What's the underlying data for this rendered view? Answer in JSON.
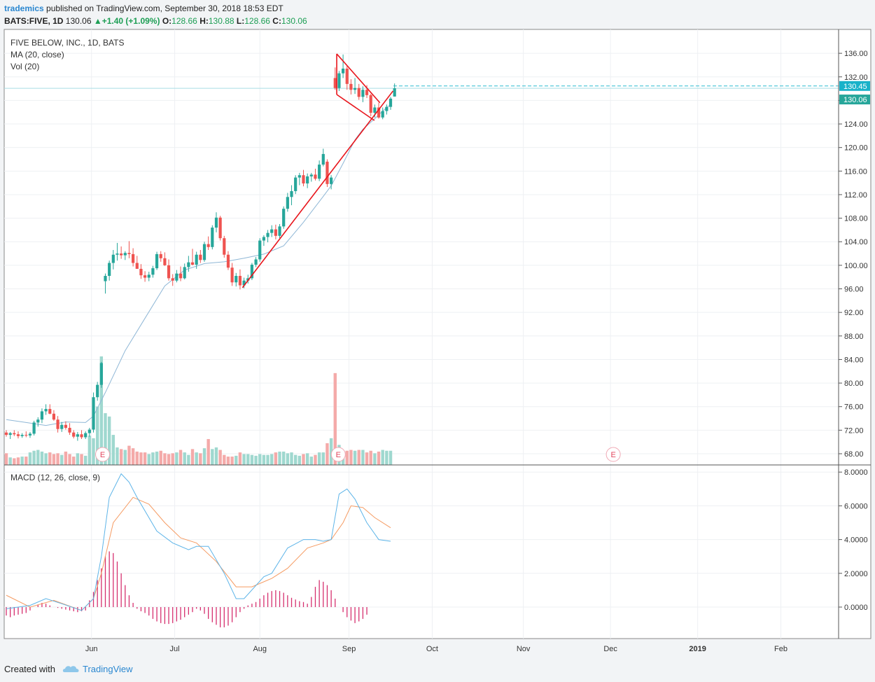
{
  "header": {
    "author": "trademics",
    "published_text": "published on TradingView.com, September 30, 2018 18:53 EDT",
    "symbol": "BATS:FIVE, 1D",
    "last": "130.06",
    "change": "+1.40 (+1.09%)",
    "o_label": "O:",
    "o_value": "128.66",
    "h_label": "H:",
    "h_value": "130.88",
    "l_label": "L:",
    "l_value": "128.66",
    "c_label": "C:",
    "c_value": "130.06"
  },
  "legend": {
    "name": "FIVE BELOW, INC., 1D, BATS",
    "ma": "MA (20, close)",
    "vol": "Vol (20)",
    "macd": "MACD (12, 26, close, 9)"
  },
  "footer": {
    "created": "Created with",
    "brand": "TradingView"
  },
  "colors": {
    "up": "#26a69a",
    "down": "#ef5350",
    "ma": "#8fb7d6",
    "macd": "#5db4e8",
    "signal": "#f59b62",
    "hist": "#d6306f",
    "trend": "#e8141b",
    "last_line": "#2dbcd1",
    "earnings": "#e2445c"
  },
  "chart_data": [
    {
      "type": "candlestick",
      "title": "FIVE BELOW, INC., 1D, BATS",
      "ylim": [
        66,
        138
      ],
      "y_ticks": [
        "136.00",
        "132.00",
        "128.00",
        "124.00",
        "120.00",
        "116.00",
        "112.00",
        "108.00",
        "104.00",
        "100.00",
        "96.00",
        "92.00",
        "88.00",
        "84.00",
        "80.00",
        "76.00",
        "72.00",
        "68.00"
      ],
      "x_ticks": [
        "Jun",
        "Jul",
        "Aug",
        "Sep",
        "Oct",
        "Nov",
        "Dec",
        "2019",
        "Feb"
      ],
      "x_tick_bars": [
        21.5,
        42.5,
        64,
        86.5,
        107.5,
        130.5,
        152.5,
        174.5,
        195.5
      ],
      "last_price": 130.06,
      "last_price_label": "130.06",
      "dashed_level": 130.45,
      "dashed_label": "130.45",
      "ohlc": [
        [
          71.6,
          72.0,
          70.9,
          71.2
        ],
        [
          71.2,
          71.7,
          70.5,
          71.5
        ],
        [
          71.5,
          72.0,
          71.0,
          71.3
        ],
        [
          71.3,
          71.8,
          70.6,
          71.0
        ],
        [
          71.0,
          71.5,
          70.7,
          71.2
        ],
        [
          71.2,
          71.8,
          70.8,
          71.1
        ],
        [
          71.1,
          71.7,
          70.7,
          71.4
        ],
        [
          71.4,
          73.6,
          71.1,
          73.3
        ],
        [
          73.3,
          74.2,
          72.6,
          73.8
        ],
        [
          73.8,
          75.7,
          73.2,
          75.2
        ],
        [
          75.2,
          76.4,
          74.6,
          75.6
        ],
        [
          75.6,
          76.4,
          74.7,
          74.8
        ],
        [
          74.8,
          75.4,
          73.6,
          73.8
        ],
        [
          73.8,
          74.4,
          71.6,
          72.2
        ],
        [
          72.2,
          73.4,
          71.7,
          72.9
        ],
        [
          72.9,
          73.5,
          72.1,
          72.4
        ],
        [
          72.4,
          73.2,
          71.2,
          71.6
        ],
        [
          71.6,
          72.0,
          70.6,
          70.9
        ],
        [
          70.9,
          71.7,
          70.2,
          71.3
        ],
        [
          71.3,
          72.0,
          70.5,
          70.8
        ],
        [
          70.8,
          71.8,
          70.5,
          71.5
        ],
        [
          71.5,
          72.4,
          70.9,
          72.1
        ],
        [
          72.1,
          78.4,
          71.6,
          77.6
        ],
        [
          77.6,
          80.2,
          77.0,
          79.7
        ],
        [
          79.7,
          83.6,
          79.2,
          83.4
        ],
        [
          97.3,
          98.6,
          95.2,
          98.2
        ],
        [
          98.2,
          100.8,
          97.4,
          100.4
        ],
        [
          100.4,
          102.6,
          99.3,
          101.8
        ],
        [
          101.8,
          103.8,
          100.8,
          102.0
        ],
        [
          102.0,
          103.2,
          101.1,
          101.7
        ],
        [
          101.7,
          102.4,
          100.9,
          102.1
        ],
        [
          102.1,
          104.1,
          101.2,
          101.9
        ],
        [
          101.9,
          102.9,
          99.8,
          100.4
        ],
        [
          100.4,
          101.6,
          99.4,
          99.4
        ],
        [
          99.4,
          100.2,
          97.7,
          98.3
        ],
        [
          98.3,
          99.0,
          97.2,
          97.9
        ],
        [
          97.9,
          98.9,
          97.3,
          98.4
        ],
        [
          98.4,
          99.9,
          97.9,
          99.5
        ],
        [
          99.5,
          102.3,
          99.2,
          101.9
        ],
        [
          101.9,
          102.4,
          100.6,
          101.2
        ],
        [
          101.2,
          102.2,
          99.9,
          100.0
        ],
        [
          100.0,
          101.0,
          97.4,
          97.8
        ],
        [
          97.8,
          98.5,
          96.5,
          97.4
        ],
        [
          97.4,
          99.2,
          97.1,
          98.6
        ],
        [
          98.6,
          99.8,
          97.3,
          97.8
        ],
        [
          97.8,
          100.3,
          97.6,
          99.7
        ],
        [
          99.7,
          101.6,
          98.9,
          100.5
        ],
        [
          100.5,
          102.8,
          100.0,
          100.1
        ],
        [
          100.1,
          102.3,
          99.4,
          101.8
        ],
        [
          101.8,
          102.6,
          100.4,
          100.9
        ],
        [
          100.9,
          104.0,
          100.6,
          103.6
        ],
        [
          103.6,
          104.9,
          102.6,
          103.1
        ],
        [
          103.1,
          106.8,
          102.7,
          106.4
        ],
        [
          106.4,
          109.0,
          105.6,
          108.1
        ],
        [
          108.1,
          108.4,
          104.2,
          104.6
        ],
        [
          104.6,
          105.0,
          101.3,
          101.8
        ],
        [
          101.8,
          102.4,
          99.2,
          99.6
        ],
        [
          99.6,
          100.4,
          96.5,
          97.1
        ],
        [
          97.1,
          98.7,
          96.4,
          98.2
        ],
        [
          98.2,
          99.3,
          95.9,
          96.6
        ],
        [
          96.6,
          97.9,
          96.1,
          97.4
        ],
        [
          97.4,
          98.4,
          96.9,
          97.8
        ],
        [
          97.8,
          100.4,
          97.5,
          100.1
        ],
        [
          100.1,
          101.4,
          99.7,
          101.0
        ],
        [
          101.0,
          104.6,
          100.6,
          104.2
        ],
        [
          104.2,
          105.1,
          103.3,
          104.8
        ],
        [
          104.8,
          106.0,
          103.9,
          105.5
        ],
        [
          105.5,
          106.8,
          104.8,
          106.1
        ],
        [
          106.1,
          106.9,
          104.4,
          105.0
        ],
        [
          105.0,
          107.0,
          104.6,
          106.6
        ],
        [
          106.6,
          110.0,
          106.2,
          109.6
        ],
        [
          109.6,
          112.3,
          109.1,
          111.6
        ],
        [
          111.6,
          113.6,
          110.2,
          112.6
        ],
        [
          112.6,
          115.3,
          112.1,
          114.9
        ],
        [
          114.9,
          115.7,
          113.6,
          115.3
        ],
        [
          115.3,
          116.2,
          113.4,
          113.9
        ],
        [
          113.9,
          115.6,
          113.1,
          115.1
        ],
        [
          115.1,
          115.7,
          114.2,
          115.4
        ],
        [
          115.4,
          116.4,
          114.4,
          114.7
        ],
        [
          114.7,
          117.8,
          114.3,
          117.1
        ],
        [
          117.1,
          119.8,
          116.8,
          118.9
        ],
        [
          117.6,
          118.0,
          113.3,
          113.8
        ],
        [
          113.8,
          115.3,
          112.9,
          114.9
        ],
        [
          131.8,
          133.6,
          129.8,
          130.1
        ],
        [
          130.1,
          133.0,
          129.6,
          132.6
        ],
        [
          132.6,
          135.8,
          131.8,
          133.4
        ],
        [
          133.4,
          133.8,
          129.8,
          130.8
        ],
        [
          130.8,
          131.6,
          129.0,
          129.8
        ],
        [
          129.8,
          131.8,
          129.1,
          130.1
        ],
        [
          130.1,
          130.8,
          128.1,
          128.6
        ],
        [
          128.6,
          130.4,
          127.7,
          129.8
        ],
        [
          129.8,
          130.6,
          128.4,
          128.9
        ],
        [
          128.9,
          129.1,
          125.3,
          125.9
        ],
        [
          125.9,
          127.3,
          125.1,
          126.8
        ],
        [
          126.8,
          127.6,
          124.9,
          125.1
        ],
        [
          125.1,
          126.8,
          124.8,
          126.2
        ],
        [
          126.2,
          127.3,
          125.6,
          126.9
        ],
        [
          126.9,
          128.6,
          126.4,
          128.3
        ],
        [
          128.66,
          130.88,
          128.66,
          130.06
        ]
      ],
      "volume": [
        1.4,
        0.9,
        0.8,
        0.9,
        1.0,
        1.0,
        1.5,
        1.7,
        1.8,
        1.6,
        1.4,
        1.5,
        1.3,
        1.4,
        1.2,
        1.6,
        1.3,
        1.0,
        1.4,
        1.3,
        1.1,
        3.5,
        3.2,
        7.0,
        13.0,
        6.2,
        5.8,
        3.6,
        2.1,
        1.9,
        1.8,
        2.3,
        2.0,
        1.6,
        1.5,
        1.5,
        1.3,
        1.5,
        1.6,
        1.7,
        1.4,
        1.3,
        1.4,
        1.5,
        1.8,
        1.5,
        1.2,
        1.9,
        1.5,
        1.4,
        2.0,
        3.1,
        1.9,
        2.1,
        1.8,
        1.2,
        1.0,
        1.0,
        1.1,
        1.5,
        1.3,
        1.3,
        1.2,
        1.1,
        1.3,
        1.2,
        1.2,
        1.3,
        1.5,
        1.6,
        1.6,
        1.4,
        1.5,
        1.2,
        1.1,
        1.3,
        1.4,
        1.0,
        1.2,
        1.5,
        1.5,
        2.6,
        3.2,
        11.0,
        2.4,
        1.6,
        1.7,
        1.8,
        1.7,
        1.8,
        1.8,
        1.5,
        1.7,
        1.4,
        1.6,
        1.8,
        1.7,
        1.7
      ],
      "volume_max": 13.0,
      "ma": [
        [
          0,
          73.8
        ],
        [
          5,
          73.3
        ],
        [
          10,
          72.8
        ],
        [
          15,
          73.4
        ],
        [
          20,
          73.3
        ],
        [
          22,
          74.4
        ],
        [
          25,
          78.4
        ],
        [
          30,
          85.5
        ],
        [
          35,
          91.0
        ],
        [
          40,
          96.5
        ],
        [
          45,
          99.2
        ],
        [
          50,
          100.3
        ],
        [
          55,
          100.6
        ],
        [
          60,
          101.2
        ],
        [
          65,
          101.9
        ],
        [
          70,
          103.3
        ],
        [
          75,
          107.3
        ],
        [
          80,
          111.7
        ],
        [
          82,
          113.5
        ],
        [
          85,
          117.3
        ],
        [
          88,
          121.3
        ],
        [
          90,
          123.1
        ],
        [
          93,
          124.9
        ],
        [
          95,
          126.2
        ],
        [
          97,
          127.3
        ]
      ],
      "earnings_bars": [
        24.3,
        83.8,
        153.2
      ],
      "earnings_label": "E",
      "trendlines": [
        {
          "from": [
            59.6,
            96.2
          ],
          "to": [
            97.6,
            129.6
          ]
        },
        {
          "from": [
            83.4,
            135.9
          ],
          "to": [
            94.3,
            127.6
          ]
        },
        {
          "from": [
            83.4,
            129.0
          ],
          "to": [
            92.9,
            124.6
          ]
        },
        {
          "from": [
            83.4,
            135.9
          ],
          "to": [
            83.4,
            129.0
          ]
        }
      ]
    },
    {
      "type": "line",
      "title": "MACD (12, 26, close, 9)",
      "ylim": [
        -1.8,
        8.3
      ],
      "y_ticks": [
        "8.0000",
        "6.0000",
        "4.0000",
        "2.0000",
        "0.0000"
      ],
      "macd": [
        [
          0,
          -0.1
        ],
        [
          6,
          0.1
        ],
        [
          10,
          0.5
        ],
        [
          14,
          0.2
        ],
        [
          19,
          -0.2
        ],
        [
          22,
          0.5
        ],
        [
          24,
          3.0
        ],
        [
          26,
          6.5
        ],
        [
          29,
          7.9
        ],
        [
          31,
          7.4
        ],
        [
          33,
          6.5
        ],
        [
          38,
          4.5
        ],
        [
          42,
          3.8
        ],
        [
          46,
          3.4
        ],
        [
          48,
          3.6
        ],
        [
          51,
          3.6
        ],
        [
          55,
          2.0
        ],
        [
          58,
          0.5
        ],
        [
          60,
          0.5
        ],
        [
          65,
          1.8
        ],
        [
          67,
          2.0
        ],
        [
          71,
          3.5
        ],
        [
          75,
          4.0
        ],
        [
          78,
          4.0
        ],
        [
          80,
          3.9
        ],
        [
          82,
          4.0
        ],
        [
          84,
          6.7
        ],
        [
          86,
          7.0
        ],
        [
          88,
          6.4
        ],
        [
          91,
          5.0
        ],
        [
          94,
          4.0
        ],
        [
          97,
          3.9
        ]
      ],
      "signal": [
        [
          0,
          0.7
        ],
        [
          6,
          0.0
        ],
        [
          12,
          0.4
        ],
        [
          19,
          -0.2
        ],
        [
          22,
          0.5
        ],
        [
          24,
          2.0
        ],
        [
          27,
          5.0
        ],
        [
          32,
          6.5
        ],
        [
          36,
          6.1
        ],
        [
          40,
          5.0
        ],
        [
          44,
          4.1
        ],
        [
          48,
          3.8
        ],
        [
          53,
          2.7
        ],
        [
          58,
          1.2
        ],
        [
          62,
          1.2
        ],
        [
          67,
          1.7
        ],
        [
          71,
          2.3
        ],
        [
          76,
          3.5
        ],
        [
          80,
          3.8
        ],
        [
          82,
          4.0
        ],
        [
          85,
          5.0
        ],
        [
          87,
          6.0
        ],
        [
          90,
          5.9
        ],
        [
          93,
          5.3
        ],
        [
          97,
          4.7
        ]
      ],
      "histogram": [
        -0.5,
        -0.6,
        -0.5,
        -0.45,
        -0.4,
        -0.35,
        -0.2,
        0.0,
        0.15,
        0.25,
        0.2,
        0.1,
        0.0,
        -0.05,
        -0.1,
        -0.15,
        -0.2,
        -0.25,
        -0.3,
        -0.25,
        -0.2,
        0.4,
        0.9,
        1.6,
        2.3,
        3.0,
        3.3,
        3.2,
        2.7,
        2.0,
        1.3,
        0.7,
        0.25,
        -0.1,
        -0.25,
        -0.35,
        -0.5,
        -0.7,
        -0.85,
        -0.95,
        -1.0,
        -1.0,
        -0.95,
        -0.85,
        -0.75,
        -0.6,
        -0.45,
        -0.3,
        -0.1,
        -0.2,
        -0.4,
        -0.7,
        -0.9,
        -1.05,
        -1.2,
        -1.2,
        -1.1,
        -0.9,
        -0.6,
        -0.3,
        -0.1,
        0.1,
        0.2,
        0.3,
        0.5,
        0.7,
        0.85,
        0.95,
        1.0,
        0.95,
        0.85,
        0.7,
        0.55,
        0.45,
        0.35,
        0.3,
        0.2,
        0.6,
        1.2,
        1.6,
        1.5,
        1.3,
        1.0,
        0.5,
        0.0,
        -0.3,
        -0.6,
        -0.8,
        -0.95,
        -0.85,
        -0.7,
        -0.45
      ]
    }
  ]
}
